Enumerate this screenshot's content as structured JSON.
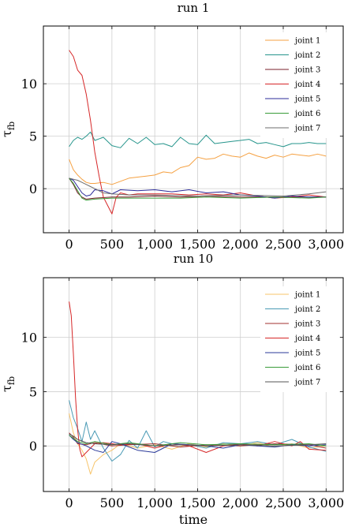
{
  "chart_data": [
    {
      "type": "line",
      "title": "run 1",
      "xlabel": "",
      "ylabel": "τ_fb",
      "ylabel_main": "τ",
      "ylabel_sub": "fb",
      "xlim": [
        -300,
        3200
      ],
      "ylim": [
        -4.2,
        15.5
      ],
      "xticks": [
        0,
        500,
        1000,
        1500,
        2000,
        2500,
        3000
      ],
      "xtick_labels": [
        "0",
        "500",
        "1,000",
        "1,500",
        "2,000",
        "2,500",
        "3,000"
      ],
      "yticks": [
        0,
        5,
        10
      ],
      "ytick_labels": [
        "0",
        "5",
        "10"
      ],
      "grid": true,
      "legend_position": "top-right",
      "series": [
        {
          "name": "joint 1",
          "color": "#f5a142",
          "x": [
            0,
            50,
            100,
            150,
            200,
            250,
            300,
            400,
            500,
            600,
            700,
            800,
            900,
            1000,
            1100,
            1200,
            1300,
            1400,
            1500,
            1600,
            1700,
            1800,
            1900,
            2000,
            2100,
            2200,
            2300,
            2400,
            2500,
            2600,
            2700,
            2800,
            2900,
            3000
          ],
          "y": [
            2.8,
            1.8,
            1.3,
            0.9,
            0.6,
            0.5,
            0.5,
            0.6,
            0.4,
            0.7,
            1.0,
            1.1,
            1.2,
            1.3,
            1.6,
            1.5,
            2.0,
            2.2,
            3.0,
            2.8,
            2.9,
            3.3,
            3.1,
            3.0,
            3.4,
            3.1,
            2.9,
            3.2,
            3.0,
            3.3,
            3.2,
            3.1,
            3.3,
            3.1
          ]
        },
        {
          "name": "joint 2",
          "color": "#26958c",
          "x": [
            0,
            50,
            100,
            150,
            200,
            250,
            300,
            400,
            500,
            600,
            700,
            800,
            900,
            1000,
            1100,
            1200,
            1300,
            1400,
            1500,
            1600,
            1700,
            1800,
            1900,
            2000,
            2100,
            2200,
            2300,
            2400,
            2500,
            2600,
            2700,
            2800,
            2900,
            3000
          ],
          "y": [
            4.0,
            4.6,
            4.9,
            4.7,
            5.0,
            5.4,
            4.6,
            4.9,
            4.1,
            3.9,
            4.8,
            4.3,
            4.9,
            4.2,
            4.3,
            4.0,
            4.9,
            4.3,
            4.2,
            5.1,
            4.3,
            4.4,
            4.5,
            4.6,
            4.7,
            4.3,
            4.4,
            4.2,
            4.0,
            4.3,
            4.3,
            4.4,
            4.3,
            4.3
          ]
        },
        {
          "name": "joint 3",
          "color": "#7a1f2b",
          "x": [
            0,
            50,
            100,
            150,
            200,
            300,
            500,
            700,
            1000,
            1300,
            1600,
            2000,
            2400,
            2800,
            3000
          ],
          "y": [
            1.0,
            0.4,
            -0.4,
            -0.8,
            -1.0,
            -0.9,
            -0.8,
            -0.8,
            -0.7,
            -0.8,
            -0.7,
            -0.8,
            -0.8,
            -0.8,
            -0.8
          ]
        },
        {
          "name": "joint 4",
          "color": "#d62728",
          "x": [
            0,
            50,
            100,
            150,
            200,
            250,
            300,
            350,
            400,
            450,
            500,
            550,
            600,
            700,
            800,
            1000,
            1200,
            1400,
            1600,
            1800,
            2000,
            2200,
            2400,
            2600,
            2800,
            3000
          ],
          "y": [
            13.2,
            12.6,
            11.3,
            10.8,
            9.0,
            6.5,
            3.5,
            1.2,
            -0.8,
            -1.6,
            -2.4,
            -0.8,
            -0.4,
            -0.6,
            -0.5,
            -0.5,
            -0.5,
            -0.6,
            -0.5,
            -0.6,
            -0.4,
            -0.7,
            -0.9,
            -0.8,
            -0.6,
            -0.8
          ]
        },
        {
          "name": "joint 5",
          "color": "#2b2b9a",
          "x": [
            0,
            50,
            100,
            150,
            200,
            250,
            300,
            400,
            500,
            600,
            800,
            1000,
            1200,
            1400,
            1600,
            1800,
            2000,
            2200,
            2400,
            2600,
            2800,
            3000
          ],
          "y": [
            1.0,
            0.8,
            0.2,
            -0.4,
            -0.7,
            -0.6,
            -0.1,
            -0.2,
            -0.5,
            -0.1,
            -0.2,
            -0.1,
            -0.3,
            -0.1,
            -0.4,
            -0.3,
            -0.6,
            -0.7,
            -0.9,
            -0.7,
            -0.8,
            -0.8
          ]
        },
        {
          "name": "joint 6",
          "color": "#3a9c3a",
          "x": [
            0,
            50,
            100,
            150,
            200,
            300,
            500,
            700,
            1000,
            1300,
            1600,
            2000,
            2400,
            2800,
            3000
          ],
          "y": [
            1.0,
            0.5,
            -0.2,
            -0.9,
            -1.1,
            -1.0,
            -0.9,
            -0.9,
            -0.9,
            -0.9,
            -0.8,
            -0.9,
            -0.8,
            -0.9,
            -0.8
          ]
        },
        {
          "name": "joint 7",
          "color": "#6e6e6e",
          "x": [
            0,
            50,
            100,
            150,
            200,
            250,
            300,
            400,
            500,
            700,
            1000,
            1500,
            2000,
            2500,
            2800,
            3000
          ],
          "y": [
            1.0,
            0.9,
            0.8,
            0.6,
            0.4,
            0.2,
            0.0,
            -0.4,
            -0.5,
            -0.6,
            -0.6,
            -0.7,
            -0.6,
            -0.7,
            -0.5,
            -0.3
          ]
        }
      ]
    },
    {
      "type": "line",
      "title": "run 10",
      "xlabel": "time",
      "ylabel": "τ_fb",
      "ylabel_main": "τ",
      "ylabel_sub": "fb",
      "xlim": [
        -300,
        3200
      ],
      "ylim": [
        -4.2,
        15.5
      ],
      "xticks": [
        0,
        500,
        1000,
        1500,
        2000,
        2500,
        3000
      ],
      "xtick_labels": [
        "0",
        "500",
        "1,000",
        "1,500",
        "2,000",
        "2,500",
        "3,000"
      ],
      "yticks": [
        0,
        5,
        10
      ],
      "ytick_labels": [
        "0",
        "5",
        "10"
      ],
      "grid": true,
      "legend_position": "top-right",
      "series": [
        {
          "name": "joint 1",
          "color": "#f7c46a",
          "x": [
            0,
            50,
            100,
            150,
            200,
            250,
            300,
            400,
            500,
            600,
            800,
            1000,
            1200,
            1400,
            1600,
            1800,
            2000,
            2200,
            2400,
            2600,
            2800,
            3000
          ],
          "y": [
            3.0,
            1.2,
            0.2,
            -0.4,
            -1.2,
            -2.6,
            -1.5,
            -0.8,
            -0.4,
            0.2,
            -0.2,
            0.1,
            -0.3,
            0.2,
            -0.1,
            0.2,
            0.0,
            0.3,
            -0.1,
            0.2,
            -0.2,
            0.0
          ]
        },
        {
          "name": "joint 2",
          "color": "#4a9ab5",
          "x": [
            0,
            50,
            100,
            150,
            200,
            250,
            300,
            400,
            500,
            600,
            700,
            800,
            900,
            1000,
            1100,
            1200,
            1400,
            1600,
            1800,
            2000,
            2200,
            2400,
            2600,
            2800,
            3000
          ],
          "y": [
            4.2,
            2.6,
            1.6,
            0.4,
            2.2,
            0.6,
            1.4,
            -0.2,
            -1.4,
            -0.8,
            0.5,
            -0.2,
            1.4,
            -0.1,
            0.4,
            0.2,
            0.1,
            -0.2,
            0.3,
            0.2,
            0.4,
            0.1,
            0.6,
            -0.1,
            -0.5
          ]
        },
        {
          "name": "joint 3",
          "color": "#a0302f",
          "x": [
            0,
            50,
            100,
            200,
            300,
            500,
            700,
            1000,
            1300,
            1600,
            2000,
            2400,
            2800,
            3000
          ],
          "y": [
            1.2,
            0.8,
            0.2,
            0.1,
            0.3,
            0.0,
            0.1,
            0.2,
            -0.1,
            0.1,
            0.0,
            0.2,
            0.1,
            -0.2
          ]
        },
        {
          "name": "joint 4",
          "color": "#d62728",
          "x": [
            0,
            25,
            50,
            75,
            100,
            125,
            150,
            200,
            300,
            400,
            600,
            800,
            1000,
            1200,
            1400,
            1600,
            1800,
            2000,
            2200,
            2400,
            2600,
            2700,
            2800,
            3000
          ],
          "y": [
            13.3,
            12.0,
            8.5,
            4.5,
            1.5,
            -0.3,
            -1.0,
            -0.6,
            0.2,
            0.3,
            0.1,
            0.2,
            -0.2,
            0.2,
            0.0,
            -0.6,
            0.0,
            0.2,
            0.0,
            0.4,
            0.0,
            0.4,
            -0.3,
            -0.4
          ]
        },
        {
          "name": "joint 5",
          "color": "#2b3a9a",
          "x": [
            0,
            50,
            100,
            200,
            300,
            400,
            500,
            600,
            800,
            1000,
            1200,
            1400,
            1600,
            1800,
            2000,
            2200,
            2400,
            2600,
            2800,
            3000
          ],
          "y": [
            1.0,
            0.6,
            0.3,
            0.0,
            -0.4,
            -0.6,
            0.4,
            0.2,
            -0.4,
            -0.6,
            0.2,
            0.1,
            0.0,
            -0.2,
            0.1,
            0.0,
            -0.1,
            0.1,
            0.0,
            0.1
          ]
        },
        {
          "name": "joint 6",
          "color": "#3a9c3a",
          "x": [
            0,
            50,
            100,
            200,
            300,
            500,
            700,
            1000,
            1300,
            1600,
            2000,
            2400,
            2800,
            3000
          ],
          "y": [
            1.0,
            0.7,
            0.4,
            0.2,
            0.4,
            0.1,
            0.3,
            0.0,
            0.3,
            0.1,
            0.2,
            0.1,
            0.2,
            0.0
          ]
        },
        {
          "name": "joint 7",
          "color": "#555555",
          "x": [
            0,
            50,
            100,
            200,
            300,
            500,
            700,
            1000,
            1300,
            1600,
            2000,
            2400,
            2800,
            3000
          ],
          "y": [
            1.1,
            0.9,
            0.6,
            0.3,
            0.2,
            0.1,
            0.2,
            0.0,
            0.1,
            0.0,
            0.1,
            0.0,
            0.1,
            0.2
          ]
        }
      ]
    }
  ]
}
